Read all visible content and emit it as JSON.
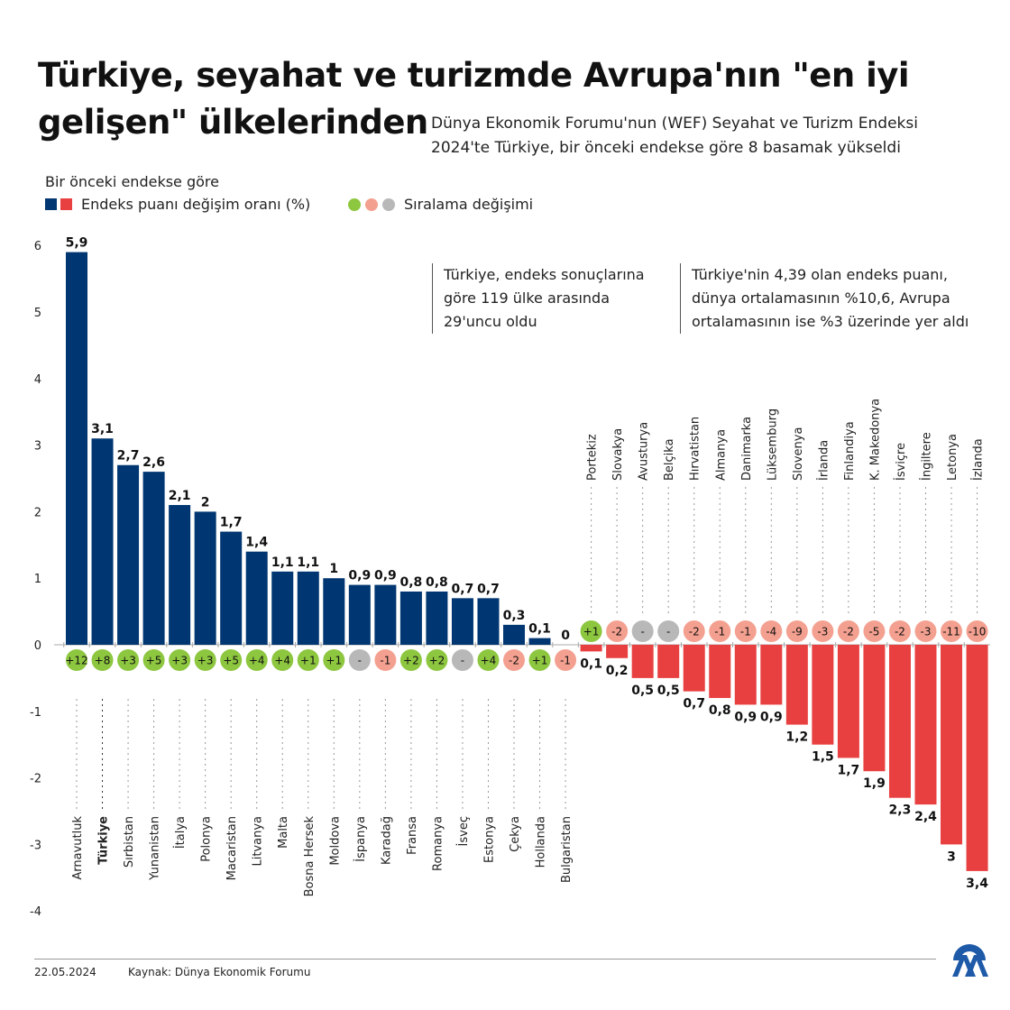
{
  "title": "Türkiye, seyahat ve turizmde Avrupa'nın \"en iyi gelişen\" ülkelerinden",
  "subtitle_line1": "Dünya Ekonomik Forumu'nun (WEF) Seyahat ve Turizm Endeksi",
  "subtitle_line2": "2024'te Türkiye, bir önceki endekse göre 8 basamak yükseldi",
  "legend": {
    "heading": "Bir önceki endekse göre",
    "bars_label": "Endeks puanı değişim oranı (%)",
    "badges_label": "Sıralama değişimi"
  },
  "notes": {
    "left_line1": "Türkiye, endeks sonuçlarına",
    "left_line2": "göre 119 ülke arasında",
    "left_line3": "29'uncu oldu",
    "right_line1": "Türkiye'nin 4,39 olan endeks puanı,",
    "right_line2": "dünya ortalamasının %10,6, Avrupa",
    "right_line3": "ortalamasının ise %3 üzerinde yer aldı"
  },
  "colors": {
    "positive_bar": "#003671",
    "negative_bar": "#e84040",
    "badge_up": "#8dc63f",
    "badge_down": "#f4a090",
    "badge_same": "#b8b8b8",
    "brand": "#1e5aa8"
  },
  "chart_data": {
    "type": "bar",
    "ylim": [
      -4,
      6
    ],
    "yticks": [
      6,
      5,
      4,
      3,
      2,
      1,
      0,
      -1,
      -2,
      -3,
      -4
    ],
    "grid": false,
    "highlight": "Türkiye",
    "categories": [
      "Arnavutluk",
      "Türkiye",
      "Sırbistan",
      "Yunanistan",
      "İtalya",
      "Polonya",
      "Macaristan",
      "Litvanya",
      "Malta",
      "Bosna Hersek",
      "Moldova",
      "İspanya",
      "Karadağ",
      "Fransa",
      "Romanya",
      "İsveç",
      "Estonya",
      "Çekya",
      "Hollanda",
      "Bulgaristan",
      "Portekiz",
      "Slovakya",
      "Avusturya",
      "Belçika",
      "Hırvatistan",
      "Almanya",
      "Danimarka",
      "Lüksemburg",
      "Slovenya",
      "İrlanda",
      "Finlandiya",
      "K. Makedonya",
      "İsviçre",
      "İngiltere",
      "Letonya",
      "İzlanda"
    ],
    "values": [
      5.9,
      3.1,
      2.7,
      2.6,
      2.1,
      2,
      1.7,
      1.4,
      1.1,
      1.1,
      1,
      0.9,
      0.9,
      0.8,
      0.8,
      0.7,
      0.7,
      0.3,
      0.1,
      0,
      -0.1,
      -0.2,
      -0.5,
      -0.5,
      -0.7,
      -0.8,
      -0.9,
      -0.9,
      -1.2,
      -1.5,
      -1.7,
      -1.9,
      -2.3,
      -2.4,
      -3,
      -3.4
    ],
    "value_labels": [
      "5,9",
      "3,1",
      "2,7",
      "2,6",
      "2,1",
      "2",
      "1,7",
      "1,4",
      "1,1",
      "1,1",
      "1",
      "0,9",
      "0,9",
      "0,8",
      "0,8",
      "0,7",
      "0,7",
      "0,3",
      "0,1",
      "0",
      "0,1",
      "0,2",
      "0,5",
      "0,5",
      "0,7",
      "0,8",
      "0,9",
      "0,9",
      "1,2",
      "1,5",
      "1,7",
      "1,9",
      "2,3",
      "2,4",
      "3",
      "3,4"
    ],
    "rank_change": [
      "+12",
      "+8",
      "+3",
      "+5",
      "+3",
      "+3",
      "+5",
      "+4",
      "+4",
      "+1",
      "+1",
      "-",
      "-1",
      "+2",
      "+2",
      "-",
      "+4",
      "-2",
      "+1",
      "-1",
      "+1",
      "-2",
      "-",
      "-",
      "-2",
      "-1",
      "-1",
      "-4",
      "-9",
      "-3",
      "-2",
      "-5",
      "-2",
      "-3",
      "-11",
      "-10"
    ]
  },
  "footer": {
    "date": "22.05.2024",
    "source": "Kaynak: Dünya Ekonomik Forumu",
    "logo_text": "AA"
  }
}
